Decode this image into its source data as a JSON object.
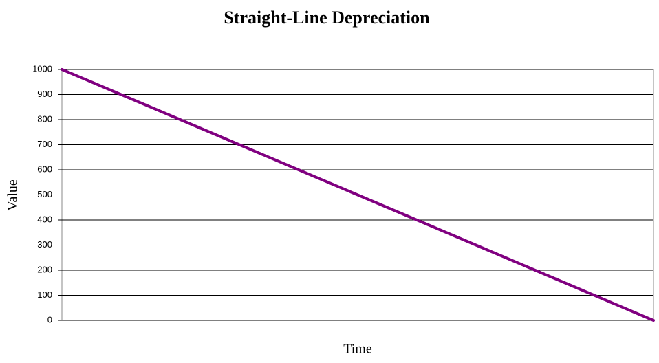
{
  "chart_data": {
    "type": "line",
    "title": "Straight-Line Depreciation",
    "x_label": "Time",
    "y_label": "Value",
    "categories": [
      null,
      null,
      null,
      null,
      null,
      null,
      null,
      null,
      null,
      null,
      null
    ],
    "series": [
      {
        "name": "Value",
        "color": "#800080",
        "values": [
          1000,
          900,
          800,
          700,
          600,
          500,
          400,
          300,
          200,
          100,
          0
        ]
      }
    ],
    "ylim": [
      0,
      1000
    ],
    "yticks": [
      0,
      100,
      200,
      300,
      400,
      500,
      600,
      700,
      800,
      900,
      1000
    ],
    "grid": true,
    "legend": false
  }
}
